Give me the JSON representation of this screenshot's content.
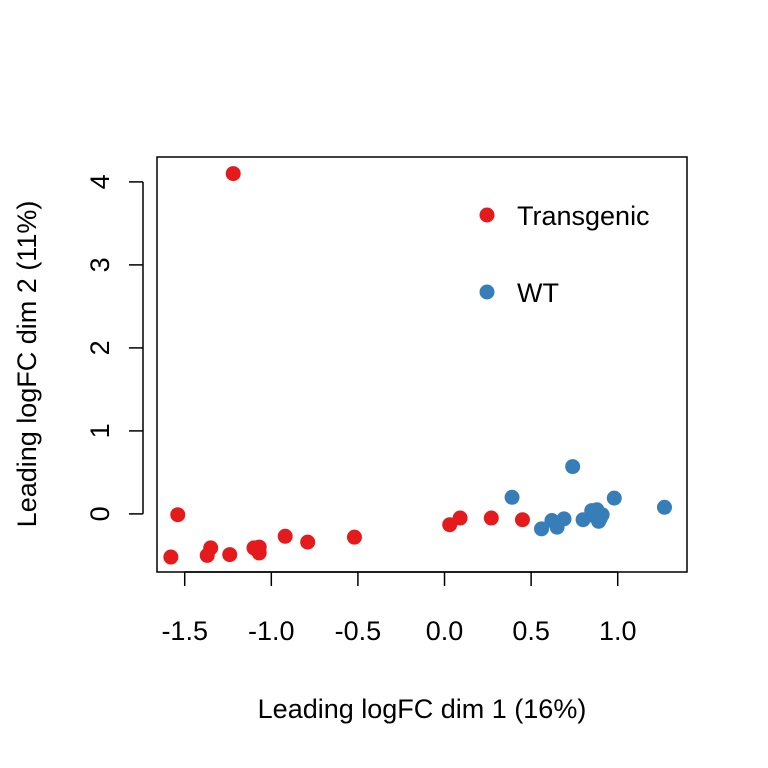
{
  "chart_data": {
    "type": "scatter",
    "xlabel": "Leading logFC dim 1 (16%)",
    "ylabel": "Leading logFC dim 2 (11%)",
    "xlim": [
      -1.66,
      1.4
    ],
    "ylim": [
      -0.7,
      4.3
    ],
    "x_ticks": [
      -1.5,
      -1.0,
      -0.5,
      0.0,
      0.5,
      1.0
    ],
    "x_tick_labels": [
      "-1.5",
      "-1.0",
      "-0.5",
      "0.0",
      "0.5",
      "1.0"
    ],
    "y_ticks": [
      0,
      1,
      2,
      3,
      4
    ],
    "y_tick_labels": [
      "0",
      "1",
      "2",
      "3",
      "4"
    ],
    "grid": false,
    "legend_position": "top-right",
    "series": [
      {
        "name": "Transgenic",
        "color": "#E41A1C",
        "points": [
          {
            "x": -1.22,
            "y": 4.1
          },
          {
            "x": -1.54,
            "y": -0.01
          },
          {
            "x": -1.58,
            "y": -0.52
          },
          {
            "x": -1.35,
            "y": -0.41
          },
          {
            "x": -1.37,
            "y": -0.5
          },
          {
            "x": -1.24,
            "y": -0.49
          },
          {
            "x": -1.1,
            "y": -0.41
          },
          {
            "x": -1.07,
            "y": -0.4
          },
          {
            "x": -1.07,
            "y": -0.47
          },
          {
            "x": -0.92,
            "y": -0.27
          },
          {
            "x": -0.79,
            "y": -0.34
          },
          {
            "x": -0.52,
            "y": -0.28
          },
          {
            "x": 0.03,
            "y": -0.13
          },
          {
            "x": 0.09,
            "y": -0.05
          },
          {
            "x": 0.27,
            "y": -0.05
          },
          {
            "x": 0.45,
            "y": -0.07
          }
        ]
      },
      {
        "name": "WT",
        "color": "#377EB8",
        "points": [
          {
            "x": 0.74,
            "y": 0.57
          },
          {
            "x": 0.39,
            "y": 0.2
          },
          {
            "x": 0.98,
            "y": 0.19
          },
          {
            "x": 1.27,
            "y": 0.08
          },
          {
            "x": 0.56,
            "y": -0.18
          },
          {
            "x": 0.62,
            "y": -0.08
          },
          {
            "x": 0.65,
            "y": -0.16
          },
          {
            "x": 0.69,
            "y": -0.06
          },
          {
            "x": 0.8,
            "y": -0.07
          },
          {
            "x": 0.85,
            "y": 0.04
          },
          {
            "x": 0.86,
            "y": -0.02
          },
          {
            "x": 0.88,
            "y": 0.05
          },
          {
            "x": 0.89,
            "y": -0.09
          },
          {
            "x": 0.9,
            "y": -0.05
          },
          {
            "x": 0.91,
            "y": -0.01
          }
        ]
      }
    ]
  }
}
